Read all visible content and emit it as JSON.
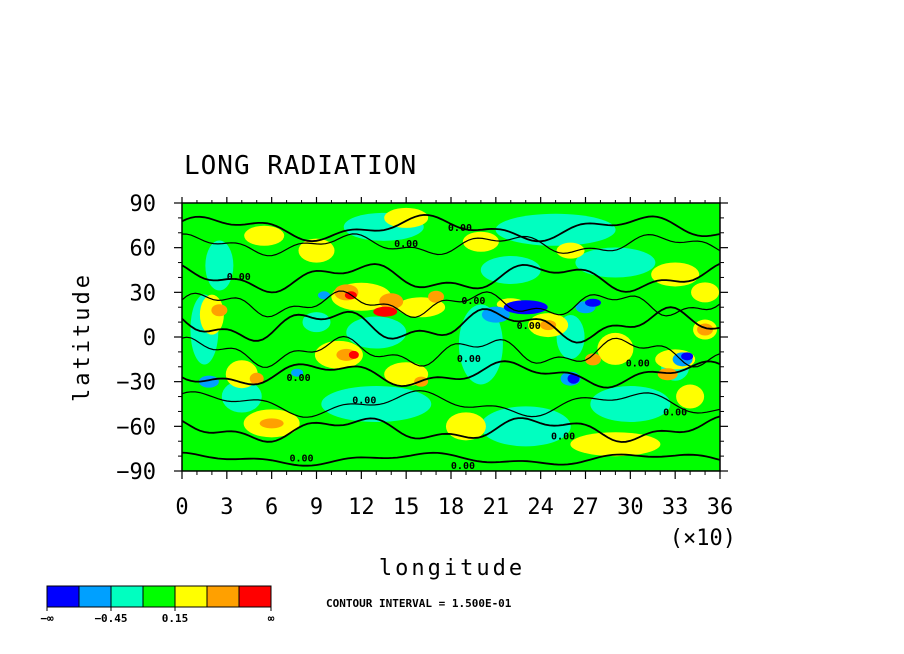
{
  "chart_data": {
    "type": "heatmap",
    "title": "LONG RADIATION",
    "xlabel": "longitude",
    "ylabel": "latitude",
    "x_multiplier_label": "(×10)",
    "xlim": [
      0,
      36
    ],
    "ylim": [
      -90,
      90
    ],
    "x_ticks": [
      "0",
      "3",
      "6",
      "9",
      "12",
      "15",
      "18",
      "21",
      "24",
      "27",
      "30",
      "33",
      "36"
    ],
    "y_ticks": [
      "90",
      "60",
      "30",
      "0",
      "−30",
      "−60",
      "−90"
    ],
    "contour_interval_text": "CONTOUR INTERVAL = 1.500E-01",
    "contour_labels": [
      {
        "text": "0.00",
        "x": 18.6,
        "y": 74
      },
      {
        "text": "0.00",
        "x": 15.0,
        "y": 63
      },
      {
        "text": "0.00",
        "x": 3.8,
        "y": 41
      },
      {
        "text": "0.00",
        "x": 19.5,
        "y": 25
      },
      {
        "text": "0.00",
        "x": 23.2,
        "y": 8
      },
      {
        "text": "0.00",
        "x": 19.2,
        "y": -14
      },
      {
        "text": "0.00",
        "x": 30.5,
        "y": -17
      },
      {
        "text": "0.00",
        "x": 7.8,
        "y": -27
      },
      {
        "text": "0.00",
        "x": 12.2,
        "y": -42
      },
      {
        "text": "0.00",
        "x": 33.0,
        "y": -50
      },
      {
        "text": "0.00",
        "x": 25.5,
        "y": -66
      },
      {
        "text": "0.00",
        "x": 8.0,
        "y": -81
      },
      {
        "text": "0.00",
        "x": 18.8,
        "y": -86
      }
    ],
    "colorbar": {
      "colors": [
        "#0000ff",
        "#00a0ff",
        "#00ffc0",
        "#00ff00",
        "#ffff00",
        "#ffa000",
        "#ff0000"
      ],
      "labels": [
        "−∞",
        "−0.45",
        "0.15",
        "∞"
      ],
      "label_bins": [
        0,
        2,
        4,
        7
      ]
    }
  }
}
